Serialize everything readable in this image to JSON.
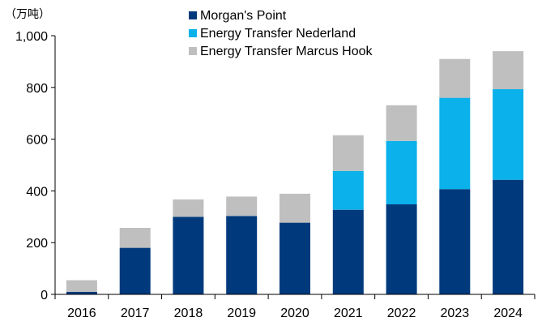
{
  "chart_data": {
    "type": "bar",
    "stacked": true,
    "unit_label": "（万吨）",
    "categories": [
      "2016",
      "2017",
      "2018",
      "2019",
      "2020",
      "2021",
      "2022",
      "2023",
      "2024"
    ],
    "series": [
      {
        "name": "Morgan's Point",
        "color": "#003a7d",
        "values": [
          10,
          180,
          300,
          303,
          277,
          327,
          348,
          407,
          443
        ]
      },
      {
        "name": "Energy Transfer Nederland",
        "color": "#0ab1ea",
        "values": [
          0,
          0,
          0,
          0,
          0,
          150,
          245,
          353,
          350
        ]
      },
      {
        "name": "Energy Transfer Marcus Hook",
        "color": "#bfbfbf",
        "values": [
          45,
          77,
          67,
          75,
          112,
          138,
          138,
          150,
          147
        ]
      }
    ],
    "ylim": [
      0,
      1000
    ],
    "yticks": [
      0,
      200,
      400,
      600,
      800,
      1000
    ],
    "ytick_labels": [
      "0",
      "200",
      "400",
      "600",
      "800",
      "1,000"
    ],
    "grid": false,
    "legend_position": "top-left"
  }
}
